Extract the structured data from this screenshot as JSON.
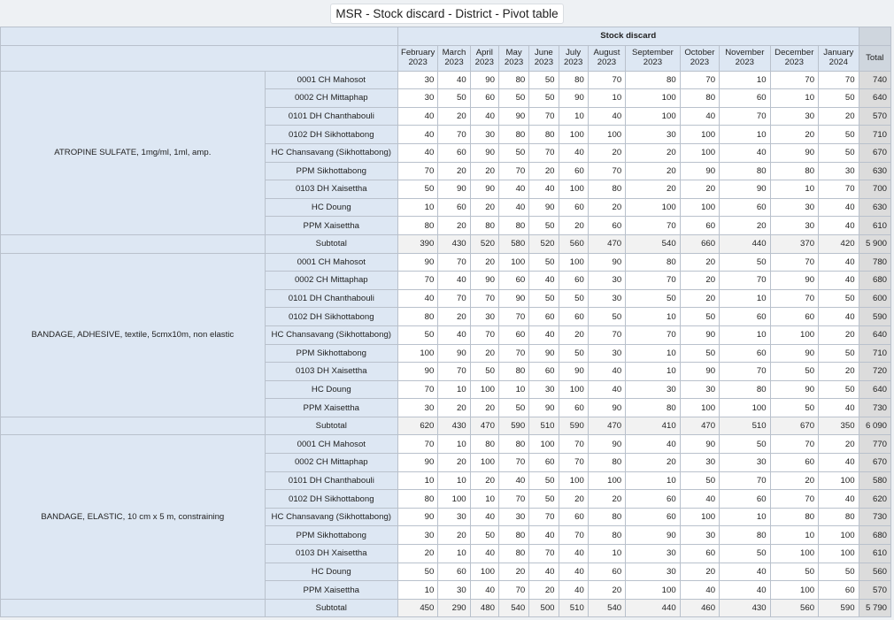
{
  "title": "MSR - Stock discard - District - Pivot table",
  "header": {
    "measure": "Stock discard",
    "total_label": "Total",
    "months": [
      [
        "February",
        "2023"
      ],
      [
        "March",
        "2023"
      ],
      [
        "April",
        "2023"
      ],
      [
        "May",
        "2023"
      ],
      [
        "June",
        "2023"
      ],
      [
        "July",
        "2023"
      ],
      [
        "August",
        "2023"
      ],
      [
        "September",
        "2023"
      ],
      [
        "October",
        "2023"
      ],
      [
        "November",
        "2023"
      ],
      [
        "December",
        "2023"
      ],
      [
        "January",
        "2024"
      ]
    ]
  },
  "subtotal_label": "Subtotal",
  "groups": [
    {
      "item": "ATROPINE SULFATE, 1mg/ml, 1ml, amp.",
      "rows": [
        {
          "unit": "0001 CH Mahosot",
          "values": [
            "30",
            "40",
            "90",
            "80",
            "50",
            "80",
            "70",
            "80",
            "70",
            "10",
            "70",
            "70"
          ],
          "total": "740"
        },
        {
          "unit": "0002 CH Mittaphap",
          "values": [
            "30",
            "50",
            "60",
            "50",
            "50",
            "90",
            "10",
            "100",
            "80",
            "60",
            "10",
            "50"
          ],
          "total": "640"
        },
        {
          "unit": "0101 DH Chanthabouli",
          "values": [
            "40",
            "20",
            "40",
            "90",
            "70",
            "10",
            "40",
            "100",
            "40",
            "70",
            "30",
            "20"
          ],
          "total": "570"
        },
        {
          "unit": "0102 DH Sikhottabong",
          "values": [
            "40",
            "70",
            "30",
            "80",
            "80",
            "100",
            "100",
            "30",
            "100",
            "10",
            "20",
            "50"
          ],
          "total": "710"
        },
        {
          "unit": "HC Chansavang (Sikhottabong)",
          "values": [
            "40",
            "60",
            "90",
            "50",
            "70",
            "40",
            "20",
            "20",
            "100",
            "40",
            "90",
            "50"
          ],
          "total": "670"
        },
        {
          "unit": "PPM Sikhottabong",
          "values": [
            "70",
            "20",
            "20",
            "70",
            "20",
            "60",
            "70",
            "20",
            "90",
            "80",
            "80",
            "30"
          ],
          "total": "630"
        },
        {
          "unit": "0103 DH Xaisettha",
          "values": [
            "50",
            "90",
            "90",
            "40",
            "40",
            "100",
            "80",
            "20",
            "20",
            "90",
            "10",
            "70"
          ],
          "total": "700"
        },
        {
          "unit": "HC Doung",
          "values": [
            "10",
            "60",
            "20",
            "40",
            "90",
            "60",
            "20",
            "100",
            "100",
            "60",
            "30",
            "40"
          ],
          "total": "630"
        },
        {
          "unit": "PPM Xaisettha",
          "values": [
            "80",
            "20",
            "80",
            "80",
            "50",
            "20",
            "60",
            "70",
            "60",
            "20",
            "30",
            "40"
          ],
          "total": "610"
        }
      ],
      "subtotal": {
        "values": [
          "390",
          "430",
          "520",
          "580",
          "520",
          "560",
          "470",
          "540",
          "660",
          "440",
          "370",
          "420"
        ],
        "total": "5 900"
      }
    },
    {
      "item": "BANDAGE, ADHESIVE, textile, 5cmx10m, non elastic",
      "rows": [
        {
          "unit": "0001 CH Mahosot",
          "values": [
            "90",
            "70",
            "20",
            "100",
            "50",
            "100",
            "90",
            "80",
            "20",
            "50",
            "70",
            "40"
          ],
          "total": "780"
        },
        {
          "unit": "0002 CH Mittaphap",
          "values": [
            "70",
            "40",
            "90",
            "60",
            "40",
            "60",
            "30",
            "70",
            "20",
            "70",
            "90",
            "40"
          ],
          "total": "680"
        },
        {
          "unit": "0101 DH Chanthabouli",
          "values": [
            "40",
            "70",
            "70",
            "90",
            "50",
            "50",
            "30",
            "50",
            "20",
            "10",
            "70",
            "50"
          ],
          "total": "600"
        },
        {
          "unit": "0102 DH Sikhottabong",
          "values": [
            "80",
            "20",
            "30",
            "70",
            "60",
            "60",
            "50",
            "10",
            "50",
            "60",
            "60",
            "40"
          ],
          "total": "590"
        },
        {
          "unit": "HC Chansavang (Sikhottabong)",
          "values": [
            "50",
            "40",
            "70",
            "60",
            "40",
            "20",
            "70",
            "70",
            "90",
            "10",
            "100",
            "20"
          ],
          "total": "640"
        },
        {
          "unit": "PPM Sikhottabong",
          "values": [
            "100",
            "90",
            "20",
            "70",
            "90",
            "50",
            "30",
            "10",
            "50",
            "60",
            "90",
            "50"
          ],
          "total": "710"
        },
        {
          "unit": "0103 DH Xaisettha",
          "values": [
            "90",
            "70",
            "50",
            "80",
            "60",
            "90",
            "40",
            "10",
            "90",
            "70",
            "50",
            "20"
          ],
          "total": "720"
        },
        {
          "unit": "HC Doung",
          "values": [
            "70",
            "10",
            "100",
            "10",
            "30",
            "100",
            "40",
            "30",
            "30",
            "80",
            "90",
            "50"
          ],
          "total": "640"
        },
        {
          "unit": "PPM Xaisettha",
          "values": [
            "30",
            "20",
            "20",
            "50",
            "90",
            "60",
            "90",
            "80",
            "100",
            "100",
            "50",
            "40"
          ],
          "total": "730"
        }
      ],
      "subtotal": {
        "values": [
          "620",
          "430",
          "470",
          "590",
          "510",
          "590",
          "470",
          "410",
          "470",
          "510",
          "670",
          "350"
        ],
        "total": "6 090"
      }
    },
    {
      "item": "BANDAGE, ELASTIC, 10 cm x 5 m, constraining",
      "rows": [
        {
          "unit": "0001 CH Mahosot",
          "values": [
            "70",
            "10",
            "80",
            "80",
            "100",
            "70",
            "90",
            "40",
            "90",
            "50",
            "70",
            "20"
          ],
          "total": "770"
        },
        {
          "unit": "0002 CH Mittaphap",
          "values": [
            "90",
            "20",
            "100",
            "70",
            "60",
            "70",
            "80",
            "20",
            "30",
            "30",
            "60",
            "40"
          ],
          "total": "670"
        },
        {
          "unit": "0101 DH Chanthabouli",
          "values": [
            "10",
            "10",
            "20",
            "40",
            "50",
            "100",
            "100",
            "10",
            "50",
            "70",
            "20",
            "100"
          ],
          "total": "580"
        },
        {
          "unit": "0102 DH Sikhottabong",
          "values": [
            "80",
            "100",
            "10",
            "70",
            "50",
            "20",
            "20",
            "60",
            "40",
            "60",
            "70",
            "40"
          ],
          "total": "620"
        },
        {
          "unit": "HC Chansavang (Sikhottabong)",
          "values": [
            "90",
            "30",
            "40",
            "30",
            "70",
            "60",
            "80",
            "60",
            "100",
            "10",
            "80",
            "80"
          ],
          "total": "730"
        },
        {
          "unit": "PPM Sikhottabong",
          "values": [
            "30",
            "20",
            "50",
            "80",
            "40",
            "70",
            "80",
            "90",
            "30",
            "80",
            "10",
            "100"
          ],
          "total": "680"
        },
        {
          "unit": "0103 DH Xaisettha",
          "values": [
            "20",
            "10",
            "40",
            "80",
            "70",
            "40",
            "10",
            "30",
            "60",
            "50",
            "100",
            "100"
          ],
          "total": "610"
        },
        {
          "unit": "HC Doung",
          "values": [
            "50",
            "60",
            "100",
            "20",
            "40",
            "40",
            "60",
            "30",
            "20",
            "40",
            "50",
            "50"
          ],
          "total": "560"
        },
        {
          "unit": "PPM Xaisettha",
          "values": [
            "10",
            "30",
            "40",
            "70",
            "20",
            "40",
            "20",
            "100",
            "40",
            "40",
            "100",
            "60"
          ],
          "total": "570"
        }
      ],
      "subtotal": {
        "values": [
          "450",
          "290",
          "480",
          "540",
          "500",
          "510",
          "540",
          "440",
          "460",
          "430",
          "560",
          "590"
        ],
        "total": "5 790"
      }
    }
  ]
}
